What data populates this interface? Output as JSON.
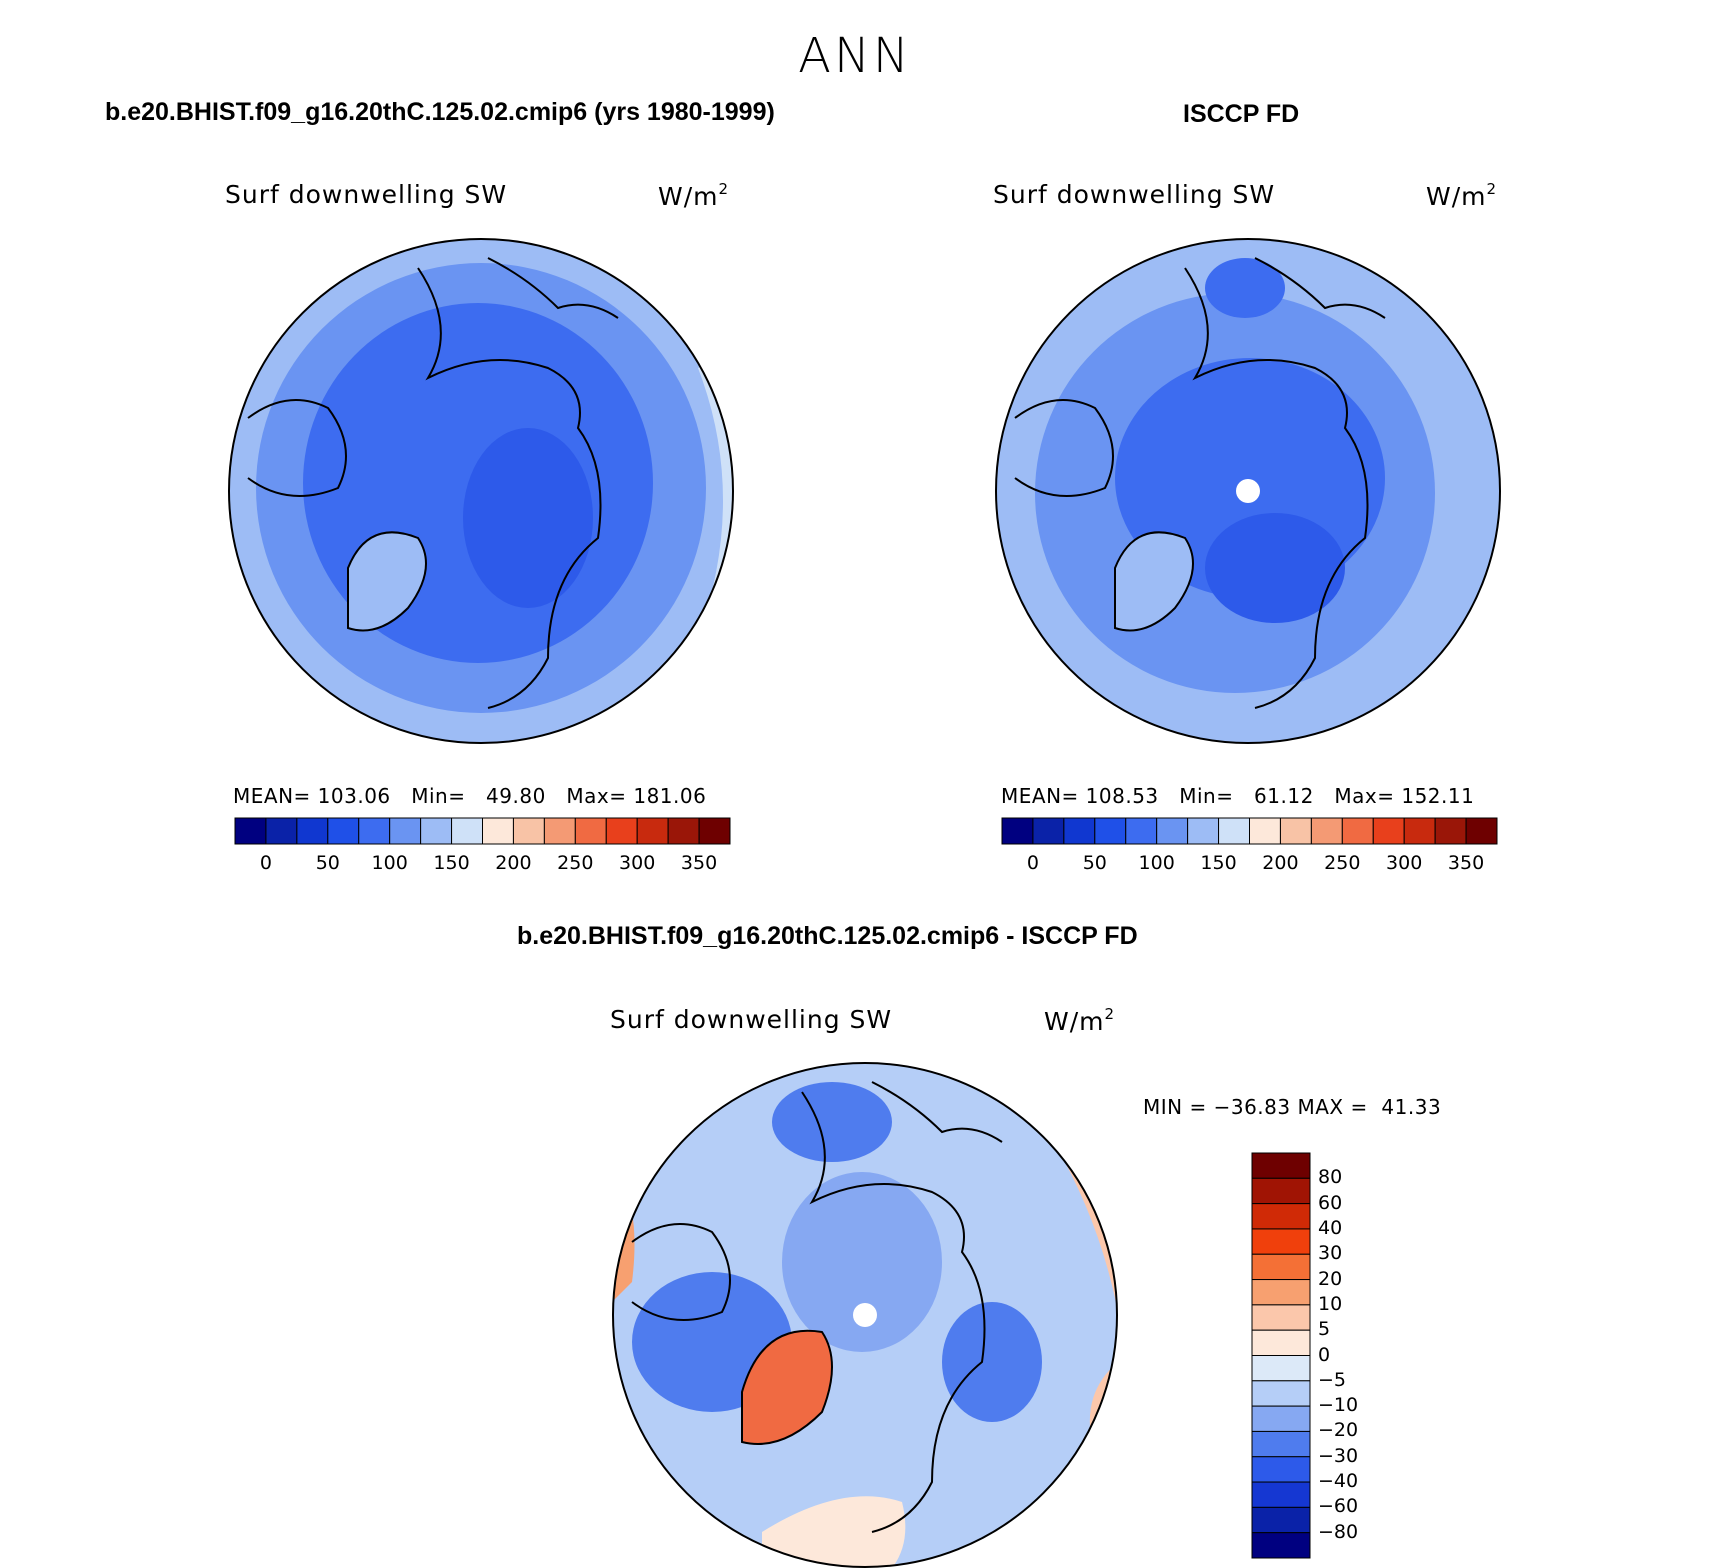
{
  "figure": {
    "title": "ANN"
  },
  "panels": [
    {
      "id": "model",
      "case_title": "b.e20.BHIST.f09_g16.20thC.125.02.cmip6 (yrs 1980-1999)",
      "variable": "Surf downwelling SW",
      "units_base": "W/m",
      "units_exp": "2",
      "stats": {
        "mean_label": "MEAN=",
        "mean": "103.06",
        "min_label": "Min=",
        "min": "49.80",
        "max_label": "Max=",
        "max": "181.06"
      },
      "polar_hole": false
    },
    {
      "id": "obs",
      "case_title": "ISCCP FD",
      "variable": "Surf downwelling SW",
      "units_base": "W/m",
      "units_exp": "2",
      "stats": {
        "mean_label": "MEAN=",
        "mean": "108.53",
        "min_label": "Min=",
        "min": "61.12",
        "max_label": "Max=",
        "max": "152.11"
      },
      "polar_hole": true
    },
    {
      "id": "diff",
      "case_title": "b.e20.BHIST.f09_g16.20thC.125.02.cmip6 - ISCCP FD",
      "variable": "Surf downwelling SW",
      "units_base": "W/m",
      "units_exp": "2",
      "stats_line": "MIN = −36.83 MAX =  41.33",
      "polar_hole": true
    }
  ],
  "colorbars": {
    "abs": {
      "orientation": "horizontal",
      "colors": [
        "#000080",
        "#0a22a8",
        "#1037d0",
        "#1f50e8",
        "#3d6cf0",
        "#6a94f2",
        "#9dbcf5",
        "#cfe1f8",
        "#fde8da",
        "#f8c3a6",
        "#f49a74",
        "#f06a42",
        "#e8401c",
        "#c82a0e",
        "#9a1608",
        "#6e0000"
      ],
      "tick_labels": [
        "0",
        "50",
        "100",
        "150",
        "200",
        "250",
        "300",
        "350"
      ]
    },
    "diff": {
      "orientation": "vertical",
      "colors": [
        "#6e0000",
        "#a01404",
        "#d02a06",
        "#f0400c",
        "#f47036",
        "#f7a070",
        "#fbc7ab",
        "#fde8da",
        "#dce9f8",
        "#b5cef7",
        "#86a8f2",
        "#4f7cee",
        "#2d5aea",
        "#1537d2",
        "#0a22a8",
        "#000080"
      ],
      "tick_labels": [
        "80",
        "60",
        "40",
        "30",
        "20",
        "10",
        "5",
        "0",
        "−5",
        "−10",
        "−20",
        "−30",
        "−40",
        "−60",
        "−80"
      ]
    }
  },
  "icons": {
    "map_projection": "north-polar-stereographic",
    "coastline_color": "#000000"
  }
}
